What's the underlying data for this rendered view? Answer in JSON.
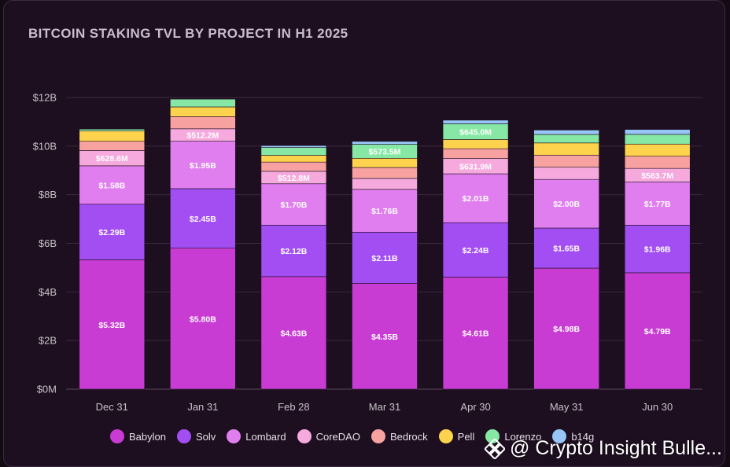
{
  "chart_data": {
    "type": "bar",
    "stacked": true,
    "title": "BITCOIN STAKING TVL BY PROJECT IN H1 2025",
    "categories": [
      "Dec 31",
      "Jan 31",
      "Feb 28",
      "Mar 31",
      "Apr 30",
      "May 31",
      "Jun 30"
    ],
    "yticks": [
      "$0M",
      "$2B",
      "$4B",
      "$6B",
      "$8B",
      "$10B",
      "$12B"
    ],
    "ylim": [
      0,
      12
    ],
    "yunit": "billion USD",
    "grid": true,
    "legend_position": "bottom",
    "series": [
      {
        "name": "Babylon",
        "color": "#c83cd4",
        "values": [
          5.32,
          5.8,
          4.63,
          4.35,
          4.61,
          4.98,
          4.79
        ],
        "labels": [
          "$5.32B",
          "$5.80B",
          "$4.63B",
          "$4.35B",
          "$4.61B",
          "$4.98B",
          "$4.79B"
        ]
      },
      {
        "name": "Solv",
        "color": "#a24ef2",
        "values": [
          2.29,
          2.45,
          2.12,
          2.11,
          2.24,
          1.65,
          1.96
        ],
        "labels": [
          "$2.29B",
          "$2.45B",
          "$2.12B",
          "$2.11B",
          "$2.24B",
          "$1.65B",
          "$1.96B"
        ]
      },
      {
        "name": "Lombard",
        "color": "#e07ef0",
        "values": [
          1.58,
          1.95,
          1.7,
          1.76,
          2.01,
          2.0,
          1.77
        ],
        "labels": [
          "$1.58B",
          "$1.95B",
          "$1.70B",
          "$1.76B",
          "$2.01B",
          "$2.00B",
          "$1.77B"
        ]
      },
      {
        "name": "CoreDAO",
        "color": "#f5a9dd",
        "values": [
          0.6286,
          0.5122,
          0.5128,
          0.45,
          0.6319,
          0.5,
          0.5637
        ],
        "labels": [
          "$628.6M",
          "$512.2M",
          "$512.8M",
          "",
          "$631.9M",
          "",
          "$563.7M"
        ]
      },
      {
        "name": "Bedrock",
        "color": "#f7a1a1",
        "values": [
          0.38,
          0.5,
          0.38,
          0.45,
          0.4,
          0.5,
          0.5
        ],
        "labels": [
          "",
          "",
          "",
          "",
          "",
          "",
          ""
        ]
      },
      {
        "name": "Pell",
        "color": "#fdd24c",
        "values": [
          0.42,
          0.4,
          0.28,
          0.38,
          0.38,
          0.5,
          0.5
        ],
        "labels": [
          "",
          "",
          "",
          "",
          "",
          "",
          ""
        ]
      },
      {
        "name": "Lorenzo",
        "color": "#86e8a4",
        "values": [
          0.08,
          0.32,
          0.32,
          0.5735,
          0.645,
          0.35,
          0.4
        ],
        "labels": [
          "",
          "",
          "",
          "$573.5M",
          "$645.0M",
          "",
          ""
        ]
      },
      {
        "name": "b14g",
        "color": "#98c5f7",
        "values": [
          0.0,
          0.0,
          0.08,
          0.12,
          0.15,
          0.18,
          0.2
        ],
        "labels": [
          "",
          "",
          "",
          "",
          "",
          "",
          ""
        ]
      }
    ]
  },
  "watermark": "@ Crypto Insight Bulle..."
}
